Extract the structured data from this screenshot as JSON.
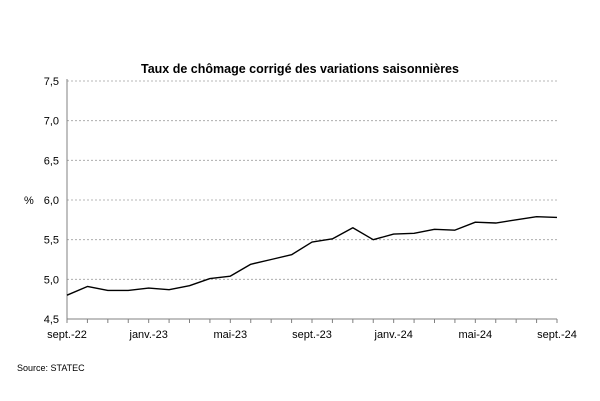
{
  "chart_data": {
    "type": "line",
    "title": "Taux de chômage corrigé des variations saisonnières",
    "ylabel": "%",
    "xlabel": "",
    "ylim": [
      4.5,
      7.5
    ],
    "yticks": [
      "4,5",
      "5,0",
      "5,5",
      "6,0",
      "6,5",
      "7,0",
      "7,5"
    ],
    "x_tick_labels": [
      "sept.-22",
      "janv.-23",
      "mai-23",
      "sept.-23",
      "janv.-24",
      "mai-24",
      "sept.-24"
    ],
    "x": [
      "sept.-22",
      "oct.-22",
      "nov.-22",
      "déc.-22",
      "janv.-23",
      "févr.-23",
      "mars-23",
      "avr.-23",
      "mai-23",
      "juin-23",
      "juil.-23",
      "août-23",
      "sept.-23",
      "oct.-23",
      "nov.-23",
      "déc.-23",
      "janv.-24",
      "févr.-24",
      "mars-24",
      "avr.-24",
      "mai-24",
      "juin-24",
      "juil.-24",
      "août-24",
      "sept.-24"
    ],
    "series": [
      {
        "values": [
          4.8,
          4.91,
          4.86,
          4.86,
          4.89,
          4.87,
          4.92,
          5.01,
          5.04,
          5.19,
          5.25,
          5.31,
          5.47,
          5.51,
          5.65,
          5.5,
          5.57,
          5.58,
          5.63,
          5.62,
          5.72,
          5.71,
          5.75,
          5.79,
          5.78
        ]
      }
    ],
    "grid": "horizontal dotted",
    "legend": "none",
    "colors": {
      "line": "#000000",
      "grid": "#a0a0a0",
      "axis": "#808080"
    }
  },
  "source": "Source: STATEC"
}
